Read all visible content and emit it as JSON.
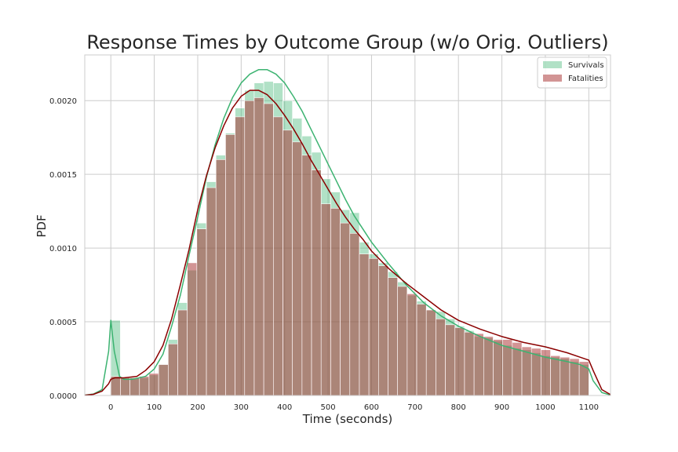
{
  "chart_data": {
    "type": "bar",
    "title": "Response Times by Outcome Group (w/o Orig. Outliers)",
    "xlabel": "Time (seconds)",
    "ylabel": "PDF",
    "xlim": [
      -60,
      1150
    ],
    "ylim": [
      0,
      0.00231
    ],
    "grid": true,
    "legend_position": "top-right",
    "x_ticks": [
      0,
      100,
      200,
      300,
      400,
      500,
      600,
      700,
      800,
      900,
      1000,
      1100
    ],
    "x_tick_labels": [
      "0",
      "100",
      "200",
      "300",
      "400",
      "500",
      "600",
      "700",
      "800",
      "900",
      "1000",
      "1100"
    ],
    "y_ticks": [
      0,
      0.0005,
      0.001,
      0.0015,
      0.002
    ],
    "y_tick_labels": [
      "0.0000",
      "0.0005",
      "0.0010",
      "0.0015",
      "0.0020"
    ],
    "bin_width": 22,
    "bin_starts": [
      0,
      22,
      44,
      66,
      88,
      110,
      132,
      154,
      176,
      198,
      220,
      242,
      264,
      286,
      308,
      330,
      352,
      374,
      396,
      418,
      440,
      462,
      484,
      506,
      528,
      550,
      572,
      594,
      616,
      638,
      660,
      682,
      704,
      726,
      748,
      770,
      792,
      814,
      836,
      858,
      880,
      902,
      924,
      946,
      968,
      990,
      1012,
      1034,
      1056,
      1078
    ],
    "series": [
      {
        "name": "Survivals",
        "color": "#3cb371",
        "opacity": 0.4,
        "values": [
          0.00051,
          0.00012,
          0.00012,
          0.00012,
          0.00014,
          0.00021,
          0.00038,
          0.00063,
          0.00085,
          0.00117,
          0.00145,
          0.00163,
          0.00178,
          0.00195,
          0.00207,
          0.00212,
          0.00213,
          0.00212,
          0.002,
          0.00188,
          0.00176,
          0.00165,
          0.00147,
          0.00138,
          0.00126,
          0.00124,
          0.00104,
          0.00096,
          0.0009,
          0.00084,
          0.00077,
          0.00068,
          0.00064,
          0.00058,
          0.00057,
          0.00052,
          0.00047,
          0.00044,
          0.0004,
          0.00039,
          0.00037,
          0.00034,
          0.00032,
          0.00031,
          0.00029,
          0.00027,
          0.00026,
          0.00025,
          0.00023,
          0.00021
        ]
      },
      {
        "name": "Fatalities",
        "color": "#a52a2a",
        "opacity": 0.5,
        "values": [
          0.00013,
          0.00012,
          0.00012,
          0.00013,
          0.00015,
          0.00021,
          0.00035,
          0.00058,
          0.0009,
          0.00113,
          0.00141,
          0.0016,
          0.00177,
          0.00189,
          0.002,
          0.00202,
          0.00198,
          0.00189,
          0.0018,
          0.00172,
          0.00163,
          0.00153,
          0.0013,
          0.00127,
          0.00117,
          0.0011,
          0.00096,
          0.00093,
          0.00088,
          0.0008,
          0.00074,
          0.00069,
          0.00062,
          0.00058,
          0.00052,
          0.00048,
          0.00046,
          0.00043,
          0.00042,
          0.0004,
          0.00038,
          0.00038,
          0.00036,
          0.00033,
          0.00032,
          0.00031,
          0.00027,
          0.00026,
          0.00025,
          0.00023
        ]
      }
    ],
    "kde": [
      {
        "name": "Survivals",
        "color": "#3cb371",
        "x": [
          -60,
          -40,
          -20,
          -5,
          0,
          8,
          20,
          30,
          50,
          80,
          100,
          120,
          140,
          160,
          180,
          200,
          220,
          240,
          260,
          280,
          300,
          320,
          340,
          360,
          380,
          400,
          420,
          440,
          460,
          480,
          500,
          520,
          540,
          560,
          580,
          600,
          640,
          680,
          720,
          760,
          800,
          850,
          900,
          950,
          1000,
          1050,
          1080,
          1100,
          1110,
          1130,
          1150
        ],
        "y": [
          3e-06,
          1e-05,
          4e-05,
          0.0003,
          0.00051,
          0.0003,
          0.00013,
          0.00011,
          0.00011,
          0.00013,
          0.00018,
          0.00028,
          0.00047,
          0.00068,
          0.00095,
          0.00121,
          0.00148,
          0.0017,
          0.00188,
          0.00202,
          0.00212,
          0.00218,
          0.00221,
          0.00221,
          0.00218,
          0.00212,
          0.00203,
          0.00193,
          0.00181,
          0.00169,
          0.00157,
          0.00145,
          0.00133,
          0.00122,
          0.00113,
          0.00104,
          0.00089,
          0.00075,
          0.00063,
          0.00054,
          0.00047,
          0.0004,
          0.00034,
          0.0003,
          0.00026,
          0.00023,
          0.00021,
          0.00018,
          0.0001,
          2e-05,
          3e-06
        ]
      },
      {
        "name": "Fatalities",
        "color": "#8b0000",
        "x": [
          -60,
          -40,
          -20,
          -5,
          0,
          10,
          30,
          60,
          80,
          100,
          120,
          140,
          160,
          180,
          200,
          220,
          240,
          260,
          280,
          300,
          320,
          340,
          360,
          380,
          400,
          420,
          440,
          460,
          480,
          500,
          520,
          540,
          560,
          580,
          600,
          640,
          680,
          720,
          760,
          800,
          850,
          900,
          950,
          1000,
          1050,
          1080,
          1100,
          1110,
          1130,
          1150
        ],
        "y": [
          2e-06,
          8e-06,
          3e-05,
          8e-05,
          0.00011,
          0.00012,
          0.00012,
          0.00013,
          0.00017,
          0.00023,
          0.00034,
          0.00052,
          0.00075,
          0.00099,
          0.00126,
          0.00149,
          0.00168,
          0.00183,
          0.00195,
          0.00203,
          0.00207,
          0.00207,
          0.00204,
          0.00198,
          0.0019,
          0.00181,
          0.00171,
          0.0016,
          0.0015,
          0.0014,
          0.0013,
          0.00121,
          0.00113,
          0.00106,
          0.00098,
          0.00086,
          0.00076,
          0.00067,
          0.00058,
          0.00051,
          0.00045,
          0.0004,
          0.00036,
          0.00033,
          0.00029,
          0.00026,
          0.00024,
          0.00017,
          4e-05,
          6e-06
        ]
      }
    ]
  }
}
